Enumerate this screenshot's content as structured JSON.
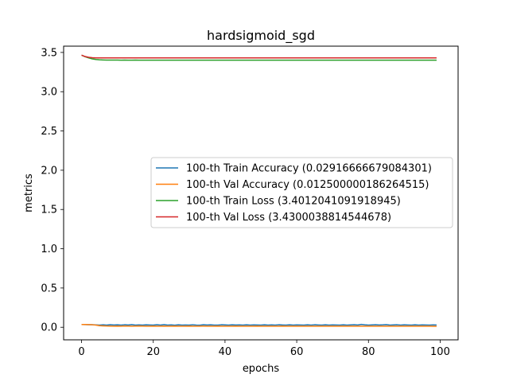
{
  "chart_data": {
    "type": "line",
    "title": "hardsigmoid_sgd",
    "xlabel": "epochs",
    "ylabel": "metrics",
    "xlim": [
      -5,
      105
    ],
    "ylim": [
      -0.16,
      3.58
    ],
    "xticks": [
      0,
      20,
      40,
      60,
      80,
      100
    ],
    "xtick_labels": [
      "0",
      "20",
      "40",
      "60",
      "80",
      "100"
    ],
    "yticks": [
      0.0,
      0.5,
      1.0,
      1.5,
      2.0,
      2.5,
      3.0,
      3.5
    ],
    "ytick_labels": [
      "0.0",
      "0.5",
      "1.0",
      "1.5",
      "2.0",
      "2.5",
      "3.0",
      "3.5"
    ],
    "grid": false,
    "legend_position": "center-right",
    "series": [
      {
        "name": "100-th Train Accuracy (0.02916666679084301)",
        "color": "#1f77b4",
        "x": [
          0,
          1,
          2,
          3,
          4,
          5,
          6,
          7,
          8,
          9,
          10,
          11,
          12,
          13,
          14,
          15,
          16,
          17,
          18,
          19,
          20,
          21,
          22,
          23,
          24,
          25,
          26,
          27,
          28,
          29,
          30,
          31,
          32,
          33,
          34,
          35,
          36,
          37,
          38,
          39,
          40,
          41,
          42,
          43,
          44,
          45,
          46,
          47,
          48,
          49,
          50,
          51,
          52,
          53,
          54,
          55,
          56,
          57,
          58,
          59,
          60,
          61,
          62,
          63,
          64,
          65,
          66,
          67,
          68,
          69,
          70,
          71,
          72,
          73,
          74,
          75,
          76,
          77,
          78,
          79,
          80,
          81,
          82,
          83,
          84,
          85,
          86,
          87,
          88,
          89,
          90,
          91,
          92,
          93,
          94,
          95,
          96,
          97,
          98,
          99
        ],
        "y": [
          0.035,
          0.034,
          0.033,
          0.032,
          0.03,
          0.028,
          0.031,
          0.027,
          0.033,
          0.029,
          0.031,
          0.028,
          0.032,
          0.029,
          0.034,
          0.028,
          0.03,
          0.027,
          0.031,
          0.029,
          0.028,
          0.033,
          0.027,
          0.034,
          0.028,
          0.03,
          0.026,
          0.031,
          0.028,
          0.029,
          0.027,
          0.032,
          0.028,
          0.026,
          0.033,
          0.029,
          0.031,
          0.028,
          0.027,
          0.032,
          0.03,
          0.028,
          0.031,
          0.029,
          0.03,
          0.028,
          0.031,
          0.027,
          0.03,
          0.029,
          0.028,
          0.031,
          0.027,
          0.03,
          0.028,
          0.032,
          0.029,
          0.027,
          0.031,
          0.028,
          0.03,
          0.029,
          0.027,
          0.031,
          0.028,
          0.032,
          0.029,
          0.027,
          0.031,
          0.028,
          0.03,
          0.029,
          0.027,
          0.031,
          0.028,
          0.03,
          0.032,
          0.029,
          0.036,
          0.031,
          0.028,
          0.03,
          0.032,
          0.029,
          0.031,
          0.034,
          0.028,
          0.03,
          0.032,
          0.028,
          0.031,
          0.029,
          0.027,
          0.031,
          0.028,
          0.03,
          0.029,
          0.027,
          0.03,
          0.029
        ]
      },
      {
        "name": "100-th Val Accuracy (0.012500000186264515)",
        "color": "#ff7f0e",
        "x": [
          0,
          1,
          2,
          3,
          4,
          5,
          6,
          7,
          8,
          9,
          10,
          11,
          12,
          13,
          14,
          15,
          16,
          17,
          18,
          19,
          20,
          21,
          22,
          23,
          24,
          25,
          26,
          27,
          28,
          29,
          30,
          31,
          32,
          33,
          34,
          35,
          36,
          37,
          38,
          39,
          40,
          41,
          42,
          43,
          44,
          45,
          46,
          47,
          48,
          49,
          50,
          51,
          52,
          53,
          54,
          55,
          56,
          57,
          58,
          59,
          60,
          61,
          62,
          63,
          64,
          65,
          66,
          67,
          68,
          69,
          70,
          71,
          72,
          73,
          74,
          75,
          76,
          77,
          78,
          79,
          80,
          81,
          82,
          83,
          84,
          85,
          86,
          87,
          88,
          89,
          90,
          91,
          92,
          93,
          94,
          95,
          96,
          97,
          98,
          99
        ],
        "y": [
          0.035,
          0.035,
          0.034,
          0.032,
          0.028,
          0.02,
          0.018,
          0.016,
          0.015,
          0.014,
          0.015,
          0.014,
          0.016,
          0.015,
          0.014,
          0.015,
          0.016,
          0.015,
          0.014,
          0.013,
          0.015,
          0.014,
          0.013,
          0.015,
          0.014,
          0.013,
          0.015,
          0.014,
          0.013,
          0.014,
          0.015,
          0.014,
          0.013,
          0.014,
          0.015,
          0.013,
          0.014,
          0.013,
          0.015,
          0.014,
          0.013,
          0.014,
          0.013,
          0.015,
          0.014,
          0.013,
          0.014,
          0.013,
          0.014,
          0.015,
          0.013,
          0.014,
          0.013,
          0.014,
          0.013,
          0.014,
          0.015,
          0.013,
          0.014,
          0.013,
          0.014,
          0.013,
          0.014,
          0.013,
          0.014,
          0.013,
          0.014,
          0.013,
          0.014,
          0.013,
          0.014,
          0.013,
          0.014,
          0.013,
          0.014,
          0.013,
          0.014,
          0.013,
          0.014,
          0.013,
          0.014,
          0.013,
          0.014,
          0.013,
          0.014,
          0.013,
          0.014,
          0.013,
          0.014,
          0.013,
          0.014,
          0.013,
          0.014,
          0.013,
          0.013,
          0.013,
          0.013,
          0.013,
          0.0125,
          0.0125
        ]
      },
      {
        "name": "100-th Train Loss (3.4012041091918945)",
        "color": "#2ca02c",
        "x": [
          0,
          1,
          2,
          3,
          4,
          5,
          6,
          7,
          8,
          9,
          10,
          11,
          12,
          13,
          14,
          15,
          16,
          17,
          18,
          19,
          20,
          21,
          22,
          23,
          24,
          25,
          26,
          27,
          28,
          29,
          30,
          31,
          32,
          33,
          34,
          35,
          36,
          37,
          38,
          39,
          40,
          41,
          42,
          43,
          44,
          45,
          46,
          47,
          48,
          49,
          50,
          51,
          52,
          53,
          54,
          55,
          56,
          57,
          58,
          59,
          60,
          61,
          62,
          63,
          64,
          65,
          66,
          67,
          68,
          69,
          70,
          71,
          72,
          73,
          74,
          75,
          76,
          77,
          78,
          79,
          80,
          81,
          82,
          83,
          84,
          85,
          86,
          87,
          88,
          89,
          90,
          91,
          92,
          93,
          94,
          95,
          96,
          97,
          98,
          99
        ],
        "y": [
          3.465,
          3.445,
          3.43,
          3.418,
          3.41,
          3.406,
          3.404,
          3.403,
          3.402,
          3.402,
          3.402,
          3.401,
          3.402,
          3.401,
          3.401,
          3.402,
          3.401,
          3.401,
          3.401,
          3.401,
          3.401,
          3.401,
          3.401,
          3.401,
          3.401,
          3.401,
          3.401,
          3.401,
          3.401,
          3.401,
          3.401,
          3.401,
          3.401,
          3.401,
          3.401,
          3.401,
          3.401,
          3.401,
          3.401,
          3.401,
          3.401,
          3.401,
          3.401,
          3.401,
          3.401,
          3.401,
          3.401,
          3.401,
          3.401,
          3.401,
          3.401,
          3.401,
          3.401,
          3.401,
          3.401,
          3.401,
          3.401,
          3.401,
          3.401,
          3.401,
          3.401,
          3.401,
          3.401,
          3.401,
          3.401,
          3.401,
          3.401,
          3.401,
          3.401,
          3.401,
          3.401,
          3.401,
          3.401,
          3.401,
          3.401,
          3.401,
          3.401,
          3.401,
          3.401,
          3.401,
          3.401,
          3.401,
          3.401,
          3.401,
          3.401,
          3.401,
          3.401,
          3.401,
          3.401,
          3.401,
          3.401,
          3.401,
          3.401,
          3.401,
          3.401,
          3.401,
          3.401,
          3.401,
          3.401,
          3.401
        ]
      },
      {
        "name": "100-th Val Loss (3.4300038814544678)",
        "color": "#d62728",
        "x": [
          0,
          1,
          2,
          3,
          4,
          5,
          6,
          7,
          8,
          9,
          10,
          11,
          12,
          13,
          14,
          15,
          16,
          17,
          18,
          19,
          20,
          21,
          22,
          23,
          24,
          25,
          26,
          27,
          28,
          29,
          30,
          31,
          32,
          33,
          34,
          35,
          36,
          37,
          38,
          39,
          40,
          41,
          42,
          43,
          44,
          45,
          46,
          47,
          48,
          49,
          50,
          51,
          52,
          53,
          54,
          55,
          56,
          57,
          58,
          59,
          60,
          61,
          62,
          63,
          64,
          65,
          66,
          67,
          68,
          69,
          70,
          71,
          72,
          73,
          74,
          75,
          76,
          77,
          78,
          79,
          80,
          81,
          82,
          83,
          84,
          85,
          86,
          87,
          88,
          89,
          90,
          91,
          92,
          93,
          94,
          95,
          96,
          97,
          98,
          99
        ],
        "y": [
          3.465,
          3.448,
          3.438,
          3.433,
          3.431,
          3.43,
          3.43,
          3.43,
          3.43,
          3.43,
          3.43,
          3.43,
          3.43,
          3.43,
          3.43,
          3.43,
          3.43,
          3.43,
          3.43,
          3.43,
          3.43,
          3.43,
          3.43,
          3.43,
          3.43,
          3.43,
          3.43,
          3.43,
          3.43,
          3.43,
          3.43,
          3.43,
          3.43,
          3.43,
          3.43,
          3.43,
          3.43,
          3.43,
          3.43,
          3.43,
          3.43,
          3.43,
          3.43,
          3.43,
          3.43,
          3.43,
          3.43,
          3.43,
          3.43,
          3.43,
          3.43,
          3.43,
          3.43,
          3.43,
          3.43,
          3.43,
          3.43,
          3.43,
          3.43,
          3.43,
          3.43,
          3.43,
          3.43,
          3.43,
          3.43,
          3.43,
          3.43,
          3.43,
          3.43,
          3.43,
          3.43,
          3.43,
          3.43,
          3.43,
          3.43,
          3.43,
          3.43,
          3.43,
          3.43,
          3.43,
          3.43,
          3.43,
          3.43,
          3.43,
          3.43,
          3.43,
          3.43,
          3.43,
          3.43,
          3.43,
          3.43,
          3.43,
          3.43,
          3.43,
          3.43,
          3.43,
          3.43,
          3.43,
          3.43,
          3.43
        ]
      }
    ]
  }
}
